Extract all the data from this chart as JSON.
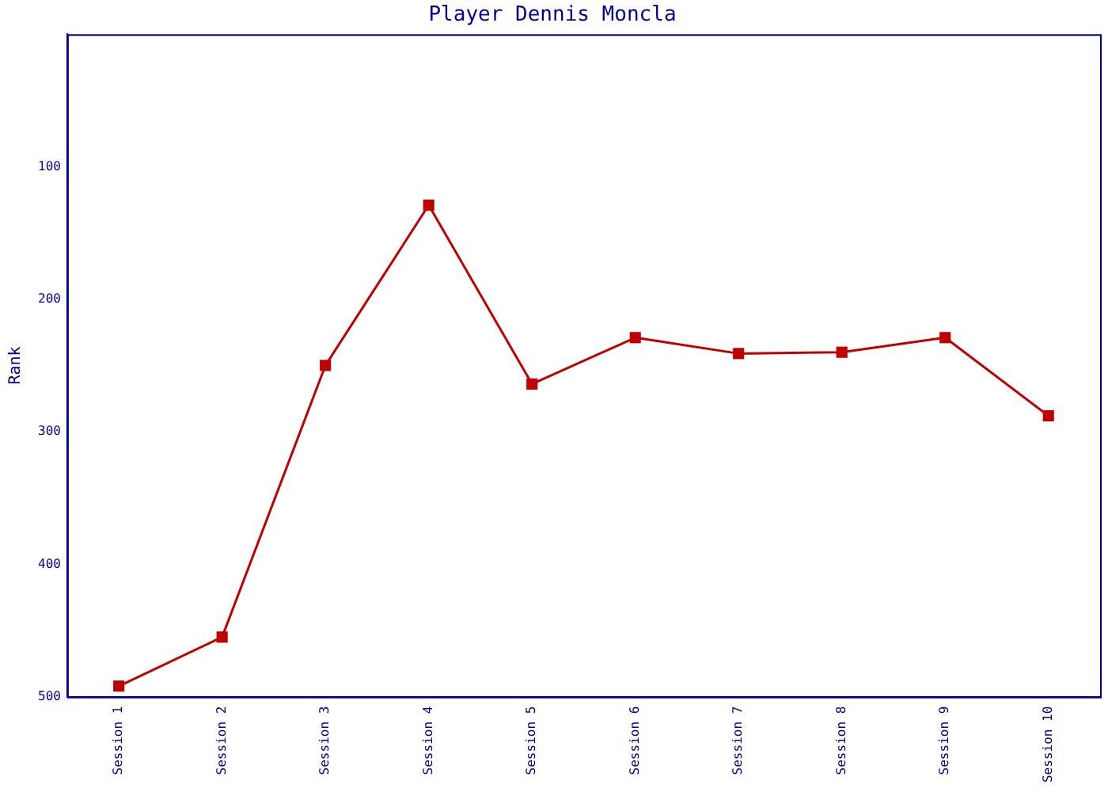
{
  "chart_data": {
    "type": "line",
    "title": "Player Dennis Moncla",
    "ylabel": "Rank",
    "categories": [
      "Session 1",
      "Session 2",
      "Session 3",
      "Session 4",
      "Session 5",
      "Session 6",
      "Session 7",
      "Session 8",
      "Session 9",
      "Session 10"
    ],
    "series": [
      {
        "color": "#c00000",
        "values": [
          492,
          455,
          250,
          129,
          264,
          229,
          241,
          240,
          229,
          288
        ]
      }
    ],
    "ylim": [
      500,
      0
    ],
    "yticks": [
      100,
      200,
      300,
      400,
      500
    ],
    "grid": false,
    "legend": false,
    "marker": "square",
    "line_style": "solid"
  }
}
